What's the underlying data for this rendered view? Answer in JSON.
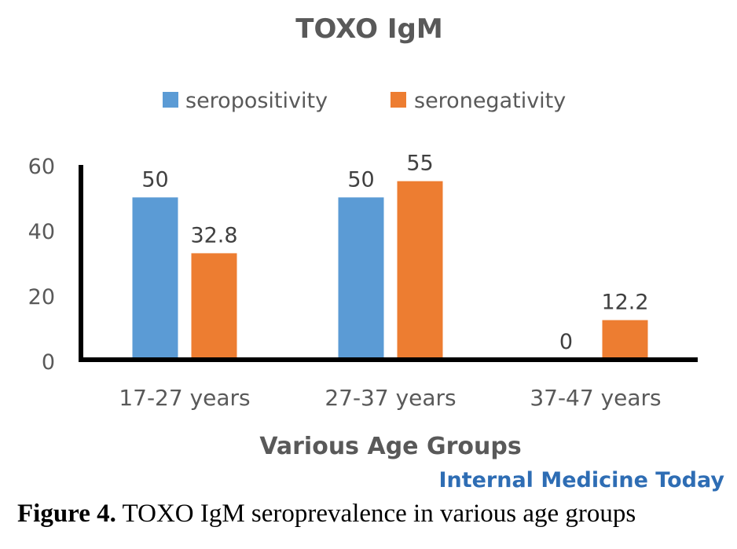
{
  "chart_data": {
    "type": "bar",
    "title": "TOXO IgM",
    "xlabel": "Various Age Groups",
    "ylabel": "",
    "ylim": [
      0,
      60
    ],
    "yticks": [
      "0",
      "20",
      "40",
      "60"
    ],
    "grid": false,
    "legend_position": "top",
    "categories": [
      "17-27 years",
      "27-37 years",
      "37-47 years"
    ],
    "series": [
      {
        "name": "seropositivity",
        "color": "#5b9bd5",
        "values": [
          50,
          50,
          0
        ],
        "labels": [
          "50",
          "50",
          "0"
        ]
      },
      {
        "name": "seronegativity",
        "color": "#ed7d31",
        "values": [
          32.8,
          55,
          12.2
        ],
        "labels": [
          "32.8",
          "55",
          "12.2"
        ]
      }
    ]
  },
  "watermark": "Internal Medicine Today",
  "caption": {
    "label": "Figure 4.",
    "text": " TOXO IgM seroprevalence in various age groups"
  }
}
